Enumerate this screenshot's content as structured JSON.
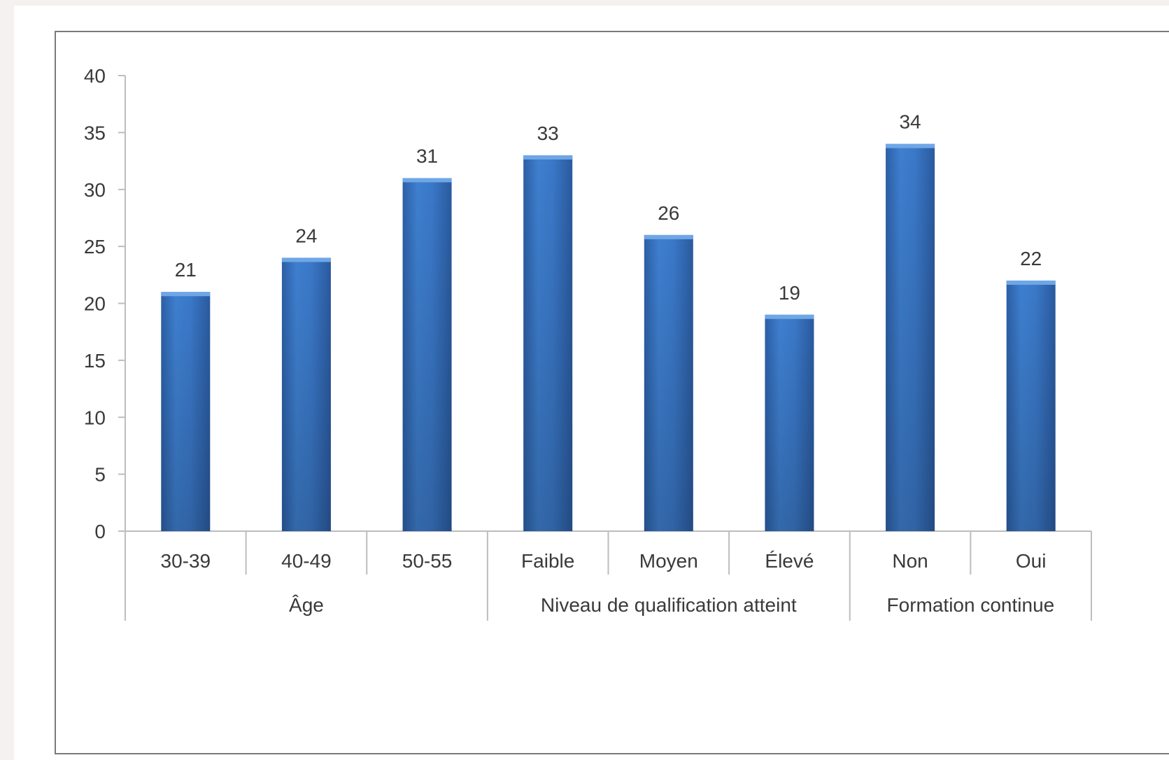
{
  "chart_data": {
    "type": "bar",
    "title": "",
    "xlabel": "",
    "ylabel": "",
    "ylim": [
      0,
      40
    ],
    "yticks": [
      0,
      5,
      10,
      15,
      20,
      25,
      30,
      35,
      40
    ],
    "grid": false,
    "legend": "none",
    "bar_color": "#3a78c8",
    "categories": [
      "30-39",
      "40-49",
      "50-55",
      "Faible",
      "Moyen",
      "Élevé",
      "Non",
      "Oui"
    ],
    "values": [
      21,
      24,
      31,
      33,
      26,
      19,
      34,
      22
    ],
    "groups": [
      {
        "label": "Âge",
        "count": 3
      },
      {
        "label": "Niveau de qualification atteint",
        "count": 3
      },
      {
        "label": "Formation continue",
        "count": 2
      }
    ]
  }
}
